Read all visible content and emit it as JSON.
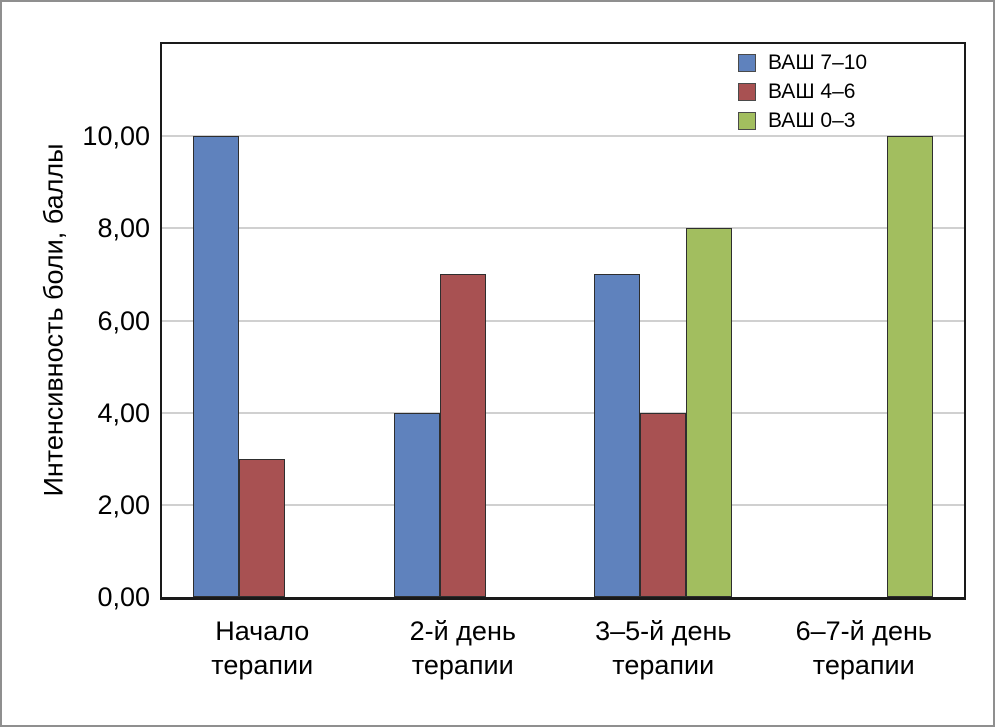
{
  "chart_data": {
    "type": "bar",
    "title": "",
    "xlabel": "",
    "ylabel": "Интенсивность боли, баллы",
    "categories": [
      "Начало терапии",
      "2-й день терапии",
      "3–5-й день терапии",
      "6–7-й день терапии"
    ],
    "category_lines": [
      [
        "Начало",
        "терапии"
      ],
      [
        "2-й день",
        "терапии"
      ],
      [
        "3–5-й день",
        "терапии"
      ],
      [
        "6–7-й день",
        "терапии"
      ]
    ],
    "series": [
      {
        "name": "ВАШ 7–10",
        "color": "#5f82bd",
        "values": [
          10,
          4,
          7,
          null
        ]
      },
      {
        "name": "ВАШ 4–6",
        "color": "#a85152",
        "values": [
          3,
          7,
          4,
          null
        ]
      },
      {
        "name": "ВАШ 0–3",
        "color": "#a2be5f",
        "values": [
          null,
          null,
          8,
          10
        ]
      }
    ],
    "ylim": [
      0,
      12
    ],
    "ytick_values": [
      0,
      2,
      4,
      6,
      8,
      10
    ],
    "ytick_labels": [
      "0,00",
      "2,00",
      "4,00",
      "6,00",
      "8,00",
      "10,00"
    ],
    "grid": true,
    "legend_position": "top-right"
  },
  "colors": {
    "grid": "#d0d0d0",
    "axis": "#1a1a1a",
    "bar_border": "#2e2e2e",
    "outer_border": "#8f8f8f"
  }
}
